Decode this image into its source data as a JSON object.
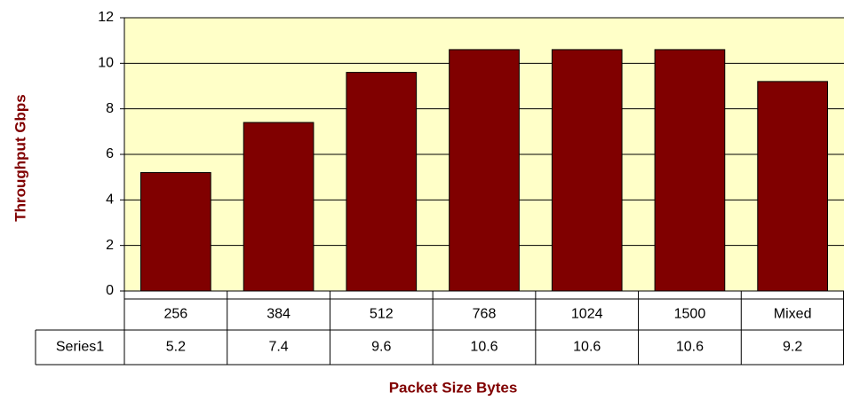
{
  "chart_data": {
    "type": "bar",
    "categories": [
      "256",
      "384",
      "512",
      "768",
      "1024",
      "1500",
      "Mixed"
    ],
    "series": [
      {
        "name": "Series1",
        "color": "#800000",
        "values": [
          5.2,
          7.4,
          9.6,
          10.6,
          10.6,
          10.6,
          9.2
        ]
      }
    ],
    "ylim": [
      0,
      12
    ],
    "yticks": [
      0,
      2,
      4,
      6,
      8,
      10,
      12
    ],
    "grid": true,
    "y_label": "Throughput  Gbps",
    "x_label": "Packet Size Bytes"
  }
}
